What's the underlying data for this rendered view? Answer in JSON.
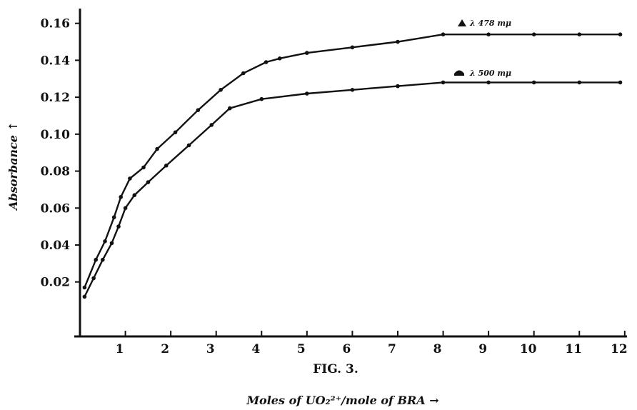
{
  "chart_data": {
    "type": "line",
    "caption": "FIG. 3.",
    "xlabel": "Moles of UO₂²⁺/mole of BRA →",
    "ylabel": "Absorbance ↑",
    "xlim": [
      0,
      12.05
    ],
    "ylim": [
      -0.0095,
      0.168
    ],
    "x_ticks": [
      "1",
      "2",
      "3",
      "4",
      "5",
      "6",
      "7",
      "8",
      "9",
      "10",
      "11",
      "12"
    ],
    "y_ticks": [
      "0.02",
      "0.04",
      "0.06",
      "0.08",
      "0.10",
      "0.12",
      "0.14",
      "0.16"
    ],
    "series": [
      {
        "name": "λ 478 mμ",
        "marker": "triangle",
        "x": [
          0.1,
          0.35,
          0.55,
          0.75,
          0.9,
          1.1,
          1.4,
          1.7,
          2.1,
          2.6,
          3.1,
          3.6,
          4.1,
          4.4,
          5.0,
          6.0,
          7.0,
          8.0,
          9.0,
          10.0,
          11.0,
          11.9
        ],
        "y": [
          0.017,
          0.032,
          0.042,
          0.055,
          0.066,
          0.076,
          0.082,
          0.092,
          0.101,
          0.113,
          0.124,
          0.133,
          0.139,
          0.141,
          0.144,
          0.147,
          0.15,
          0.154,
          0.154,
          0.154,
          0.154,
          0.154
        ]
      },
      {
        "name": "λ 500 mμ",
        "marker": "filled-dome",
        "x": [
          0.1,
          0.3,
          0.5,
          0.7,
          0.85,
          1.0,
          1.2,
          1.5,
          1.9,
          2.4,
          2.9,
          3.3,
          4.0,
          5.0,
          6.0,
          7.0,
          8.0,
          9.0,
          10.0,
          11.0,
          11.9
        ],
        "y": [
          0.012,
          0.022,
          0.032,
          0.041,
          0.05,
          0.06,
          0.067,
          0.074,
          0.083,
          0.094,
          0.105,
          0.114,
          0.119,
          0.122,
          0.124,
          0.126,
          0.128,
          0.128,
          0.128,
          0.128,
          0.128
        ]
      }
    ],
    "grid": false,
    "legend_position": "top-right"
  }
}
